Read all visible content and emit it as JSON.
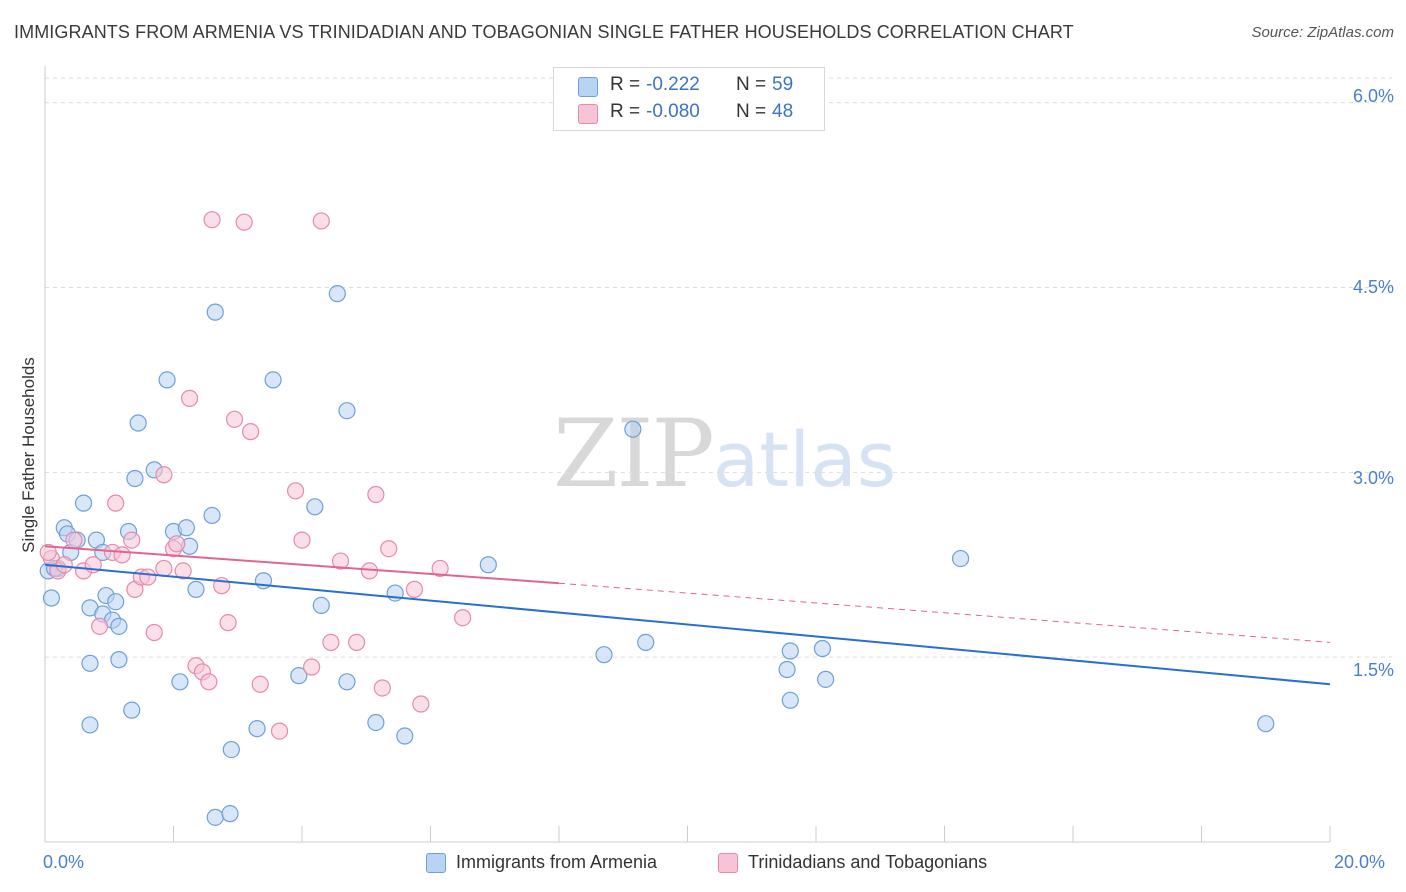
{
  "title": "IMMIGRANTS FROM ARMENIA VS TRINIDADIAN AND TOBAGONIAN SINGLE FATHER HOUSEHOLDS CORRELATION CHART",
  "source": "Source: ZipAtlas.com",
  "watermark": {
    "zip": "ZIP",
    "atlas": "atlas"
  },
  "stats": [
    {
      "r_label": "R =",
      "r_value": "-0.222",
      "n_label": "N =",
      "n_value": "59"
    },
    {
      "r_label": "R =",
      "r_value": "-0.080",
      "n_label": "N =",
      "n_value": "48"
    }
  ],
  "colors": {
    "blue_fill": "#b8d3f3",
    "blue_stroke": "#6f9fd9",
    "blue_line": "#2a6fcf",
    "pink_fill": "#f7c4d5",
    "pink_stroke": "#e58aaa",
    "pink_line": "#e2648f",
    "grid": "#dddddd",
    "tick_label": "#4a7fd0"
  },
  "chart_data": {
    "type": "scatter",
    "xlabel": "",
    "ylabel": "Single Father Households",
    "xlim": [
      0,
      20
    ],
    "ylim": [
      0,
      6.2
    ],
    "x_tick_labels": [
      "0.0%",
      "20.0%"
    ],
    "y_ticks": [
      1.5,
      3.0,
      4.5,
      6.0
    ],
    "y_tick_labels": [
      "1.5%",
      "3.0%",
      "4.5%",
      "6.0%"
    ],
    "grid": "horizontal dashed",
    "legend_position": "bottom",
    "series": [
      {
        "name": "Immigrants from Armenia",
        "color": "blue",
        "trend": {
          "x": [
            0,
            20
          ],
          "y": [
            2.25,
            1.28
          ]
        },
        "points": [
          [
            0.05,
            2.2
          ],
          [
            0.1,
            1.98
          ],
          [
            0.2,
            2.22
          ],
          [
            0.3,
            2.55
          ],
          [
            0.35,
            2.5
          ],
          [
            0.4,
            2.35
          ],
          [
            0.5,
            2.45
          ],
          [
            0.6,
            2.75
          ],
          [
            0.7,
            1.9
          ],
          [
            0.8,
            2.45
          ],
          [
            0.9,
            2.35
          ],
          [
            0.9,
            1.85
          ],
          [
            0.95,
            2.0
          ],
          [
            1.05,
            1.8
          ],
          [
            1.1,
            1.95
          ],
          [
            1.15,
            1.75
          ],
          [
            1.3,
            2.52
          ],
          [
            1.4,
            2.95
          ],
          [
            1.45,
            3.4
          ],
          [
            1.7,
            3.02
          ],
          [
            1.9,
            3.75
          ],
          [
            2.0,
            2.52
          ],
          [
            2.2,
            2.55
          ],
          [
            2.25,
            2.4
          ],
          [
            2.35,
            2.05
          ],
          [
            2.6,
            2.65
          ],
          [
            2.65,
            4.3
          ],
          [
            3.4,
            2.12
          ],
          [
            3.55,
            3.75
          ],
          [
            4.2,
            2.72
          ],
          [
            4.3,
            1.92
          ],
          [
            4.55,
            4.45
          ],
          [
            4.7,
            3.5
          ],
          [
            5.45,
            2.02
          ],
          [
            2.9,
            0.75
          ],
          [
            3.3,
            0.92
          ],
          [
            2.65,
            0.2
          ],
          [
            2.88,
            0.23
          ],
          [
            2.1,
            1.3
          ],
          [
            1.35,
            1.07
          ],
          [
            1.15,
            1.48
          ],
          [
            0.7,
            1.45
          ],
          [
            0.7,
            0.95
          ],
          [
            3.95,
            1.35
          ],
          [
            4.7,
            1.3
          ],
          [
            5.15,
            0.97
          ],
          [
            5.6,
            0.86
          ],
          [
            6.9,
            2.25
          ],
          [
            8.7,
            1.52
          ],
          [
            9.35,
            1.62
          ],
          [
            9.15,
            3.35
          ],
          [
            11.6,
            1.55
          ],
          [
            11.55,
            1.4
          ],
          [
            12.1,
            1.57
          ],
          [
            12.15,
            1.32
          ],
          [
            11.6,
            1.15
          ],
          [
            14.25,
            2.3
          ],
          [
            19.0,
            0.96
          ],
          [
            0.15,
            2.22
          ]
        ]
      },
      {
        "name": "Trinidadians and Tobagonians",
        "color": "pink",
        "trend": {
          "x": [
            0,
            8
          ],
          "y": [
            2.4,
            2.1
          ]
        },
        "trend_extension": {
          "x": [
            8,
            20
          ],
          "y": [
            2.1,
            1.62
          ]
        },
        "points": [
          [
            0.1,
            2.3
          ],
          [
            0.2,
            2.2
          ],
          [
            0.3,
            2.25
          ],
          [
            0.45,
            2.45
          ],
          [
            0.6,
            2.2
          ],
          [
            0.75,
            2.25
          ],
          [
            0.85,
            1.75
          ],
          [
            1.05,
            2.35
          ],
          [
            1.1,
            2.75
          ],
          [
            1.2,
            2.33
          ],
          [
            1.35,
            2.45
          ],
          [
            1.4,
            2.05
          ],
          [
            1.5,
            2.15
          ],
          [
            1.6,
            2.15
          ],
          [
            1.7,
            1.7
          ],
          [
            1.85,
            2.98
          ],
          [
            2.0,
            2.38
          ],
          [
            2.05,
            2.42
          ],
          [
            2.15,
            2.2
          ],
          [
            2.25,
            3.6
          ],
          [
            2.35,
            1.43
          ],
          [
            2.45,
            1.38
          ],
          [
            2.55,
            1.3
          ],
          [
            2.6,
            5.05
          ],
          [
            2.75,
            2.08
          ],
          [
            2.85,
            1.78
          ],
          [
            2.95,
            3.43
          ],
          [
            3.1,
            5.03
          ],
          [
            3.2,
            3.33
          ],
          [
            3.35,
            1.28
          ],
          [
            3.65,
            0.9
          ],
          [
            3.9,
            2.85
          ],
          [
            4.0,
            2.45
          ],
          [
            4.15,
            1.42
          ],
          [
            4.3,
            5.04
          ],
          [
            4.45,
            1.62
          ],
          [
            4.6,
            2.28
          ],
          [
            4.85,
            1.62
          ],
          [
            5.05,
            2.2
          ],
          [
            5.15,
            2.82
          ],
          [
            5.25,
            1.25
          ],
          [
            5.35,
            2.38
          ],
          [
            5.75,
            2.05
          ],
          [
            5.85,
            1.12
          ],
          [
            6.15,
            2.22
          ],
          [
            6.5,
            1.82
          ],
          [
            0.05,
            2.35
          ],
          [
            1.85,
            2.22
          ]
        ]
      }
    ]
  }
}
